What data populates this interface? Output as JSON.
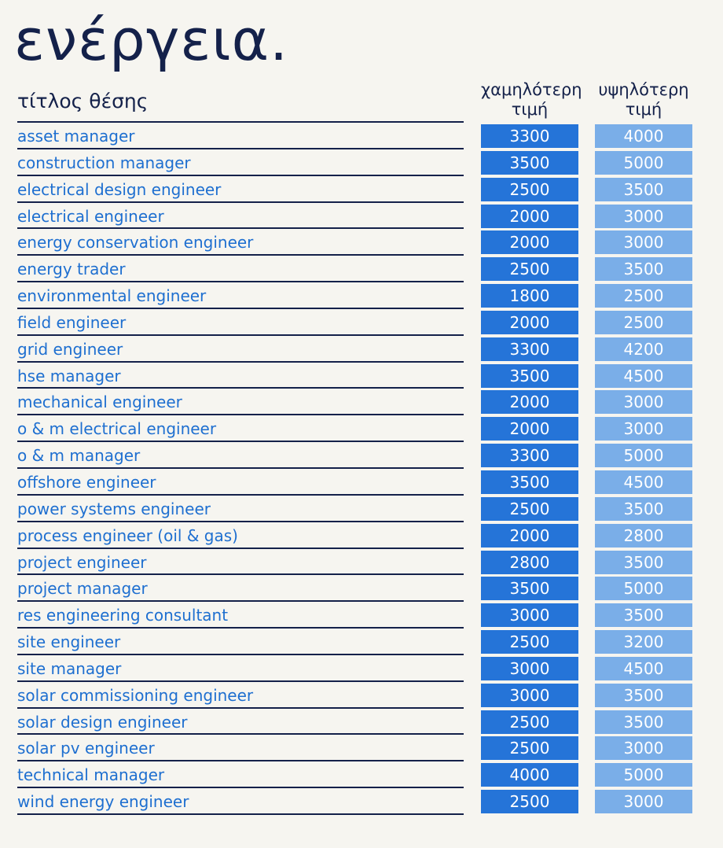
{
  "page": {
    "title": "ενέργεια.",
    "headers": {
      "job_title": "τίτλος θέσης",
      "low_line1": "χαμηλότερη",
      "low_line2": "τιμή",
      "high_line1": "υψηλότερη",
      "high_line2": "τιμή"
    },
    "colors": {
      "title": "#14214a",
      "job_text": "#1e6fd0",
      "low_cell": "#2574d8",
      "high_cell": "#7aaee8",
      "background": "#f6f5f0"
    }
  },
  "rows": [
    {
      "title": "asset manager",
      "low": "3300",
      "high": "4000"
    },
    {
      "title": "construction manager",
      "low": "3500",
      "high": "5000"
    },
    {
      "title": "electrical design engineer",
      "low": "2500",
      "high": "3500"
    },
    {
      "title": "electrical engineer",
      "low": "2000",
      "high": "3000"
    },
    {
      "title": "energy conservation engineer",
      "low": "2000",
      "high": "3000"
    },
    {
      "title": "energy trader",
      "low": "2500",
      "high": "3500"
    },
    {
      "title": "environmental engineer",
      "low": "1800",
      "high": "2500"
    },
    {
      "title": "field engineer",
      "low": "2000",
      "high": "2500"
    },
    {
      "title": "grid engineer",
      "low": "3300",
      "high": "4200"
    },
    {
      "title": "hse manager",
      "low": "3500",
      "high": "4500"
    },
    {
      "title": "mechanical engineer",
      "low": "2000",
      "high": "3000"
    },
    {
      "title": "o & m electrical engineer",
      "low": "2000",
      "high": "3000"
    },
    {
      "title": "o & m manager",
      "low": "3300",
      "high": "5000"
    },
    {
      "title": "offshore engineer",
      "low": "3500",
      "high": "4500"
    },
    {
      "title": "power systems engineer",
      "low": "2500",
      "high": "3500"
    },
    {
      "title": "process engineer (oil & gas)",
      "low": "2000",
      "high": "2800"
    },
    {
      "title": "project engineer",
      "low": "2800",
      "high": "3500"
    },
    {
      "title": "project manager",
      "low": "3500",
      "high": "5000"
    },
    {
      "title": "res engineering consultant",
      "low": "3000",
      "high": "3500"
    },
    {
      "title": "site engineer",
      "low": "2500",
      "high": "3200"
    },
    {
      "title": "site manager",
      "low": "3000",
      "high": "4500"
    },
    {
      "title": "solar commissioning engineer",
      "low": "3000",
      "high": "3500"
    },
    {
      "title": "solar design engineer",
      "low": "2500",
      "high": "3500"
    },
    {
      "title": "solar pv engineer",
      "low": "2500",
      "high": "3000"
    },
    {
      "title": "technical manager",
      "low": "4000",
      "high": "5000"
    },
    {
      "title": "wind energy engineer",
      "low": "2500",
      "high": "3000"
    }
  ]
}
